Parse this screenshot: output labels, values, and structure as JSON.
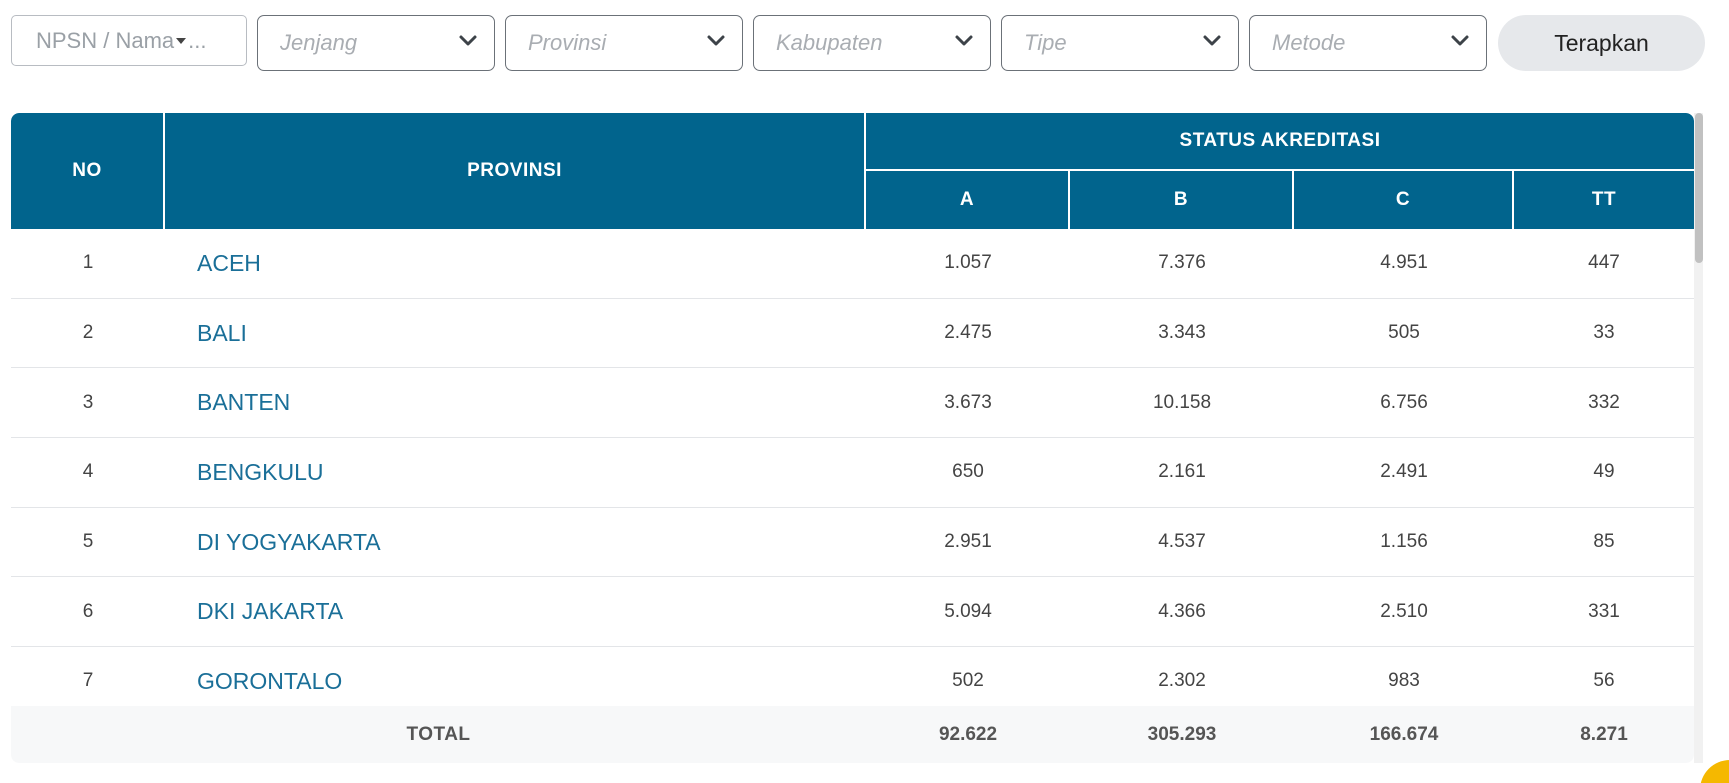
{
  "filters": {
    "search": {
      "placeholder": "NPSN / Nama",
      "ellipsis": "..."
    },
    "dropdowns": [
      {
        "placeholder": "Jenjang"
      },
      {
        "placeholder": "Provinsi"
      },
      {
        "placeholder": "Kabupaten"
      },
      {
        "placeholder": "Tipe"
      },
      {
        "placeholder": "Metode"
      }
    ],
    "apply_label": "Terapkan"
  },
  "table": {
    "headers": {
      "no": "NO",
      "provinsi": "PROVINSI",
      "status": "STATUS AKREDITASI",
      "a": "A",
      "b": "B",
      "c": "C",
      "tt": "TT"
    },
    "rows": [
      {
        "no": "1",
        "provinsi": "ACEH",
        "a": "1.057",
        "b": "7.376",
        "c": "4.951",
        "tt": "447"
      },
      {
        "no": "2",
        "provinsi": "BALI",
        "a": "2.475",
        "b": "3.343",
        "c": "505",
        "tt": "33"
      },
      {
        "no": "3",
        "provinsi": "BANTEN",
        "a": "3.673",
        "b": "10.158",
        "c": "6.756",
        "tt": "332"
      },
      {
        "no": "4",
        "provinsi": "BENGKULU",
        "a": "650",
        "b": "2.161",
        "c": "2.491",
        "tt": "49"
      },
      {
        "no": "5",
        "provinsi": "DI YOGYAKARTA",
        "a": "2.951",
        "b": "4.537",
        "c": "1.156",
        "tt": "85"
      },
      {
        "no": "6",
        "provinsi": "DKI JAKARTA",
        "a": "5.094",
        "b": "4.366",
        "c": "2.510",
        "tt": "331"
      },
      {
        "no": "7",
        "provinsi": "GORONTALO",
        "a": "502",
        "b": "2.302",
        "c": "983",
        "tt": "56"
      }
    ],
    "total": {
      "label": "TOTAL",
      "a": "92.622",
      "b": "305.293",
      "c": "166.674",
      "tt": "8.271"
    }
  },
  "colors": {
    "header_bg": "#01648d",
    "link": "#1a6f98",
    "footer_bg": "#f7f8f9"
  }
}
